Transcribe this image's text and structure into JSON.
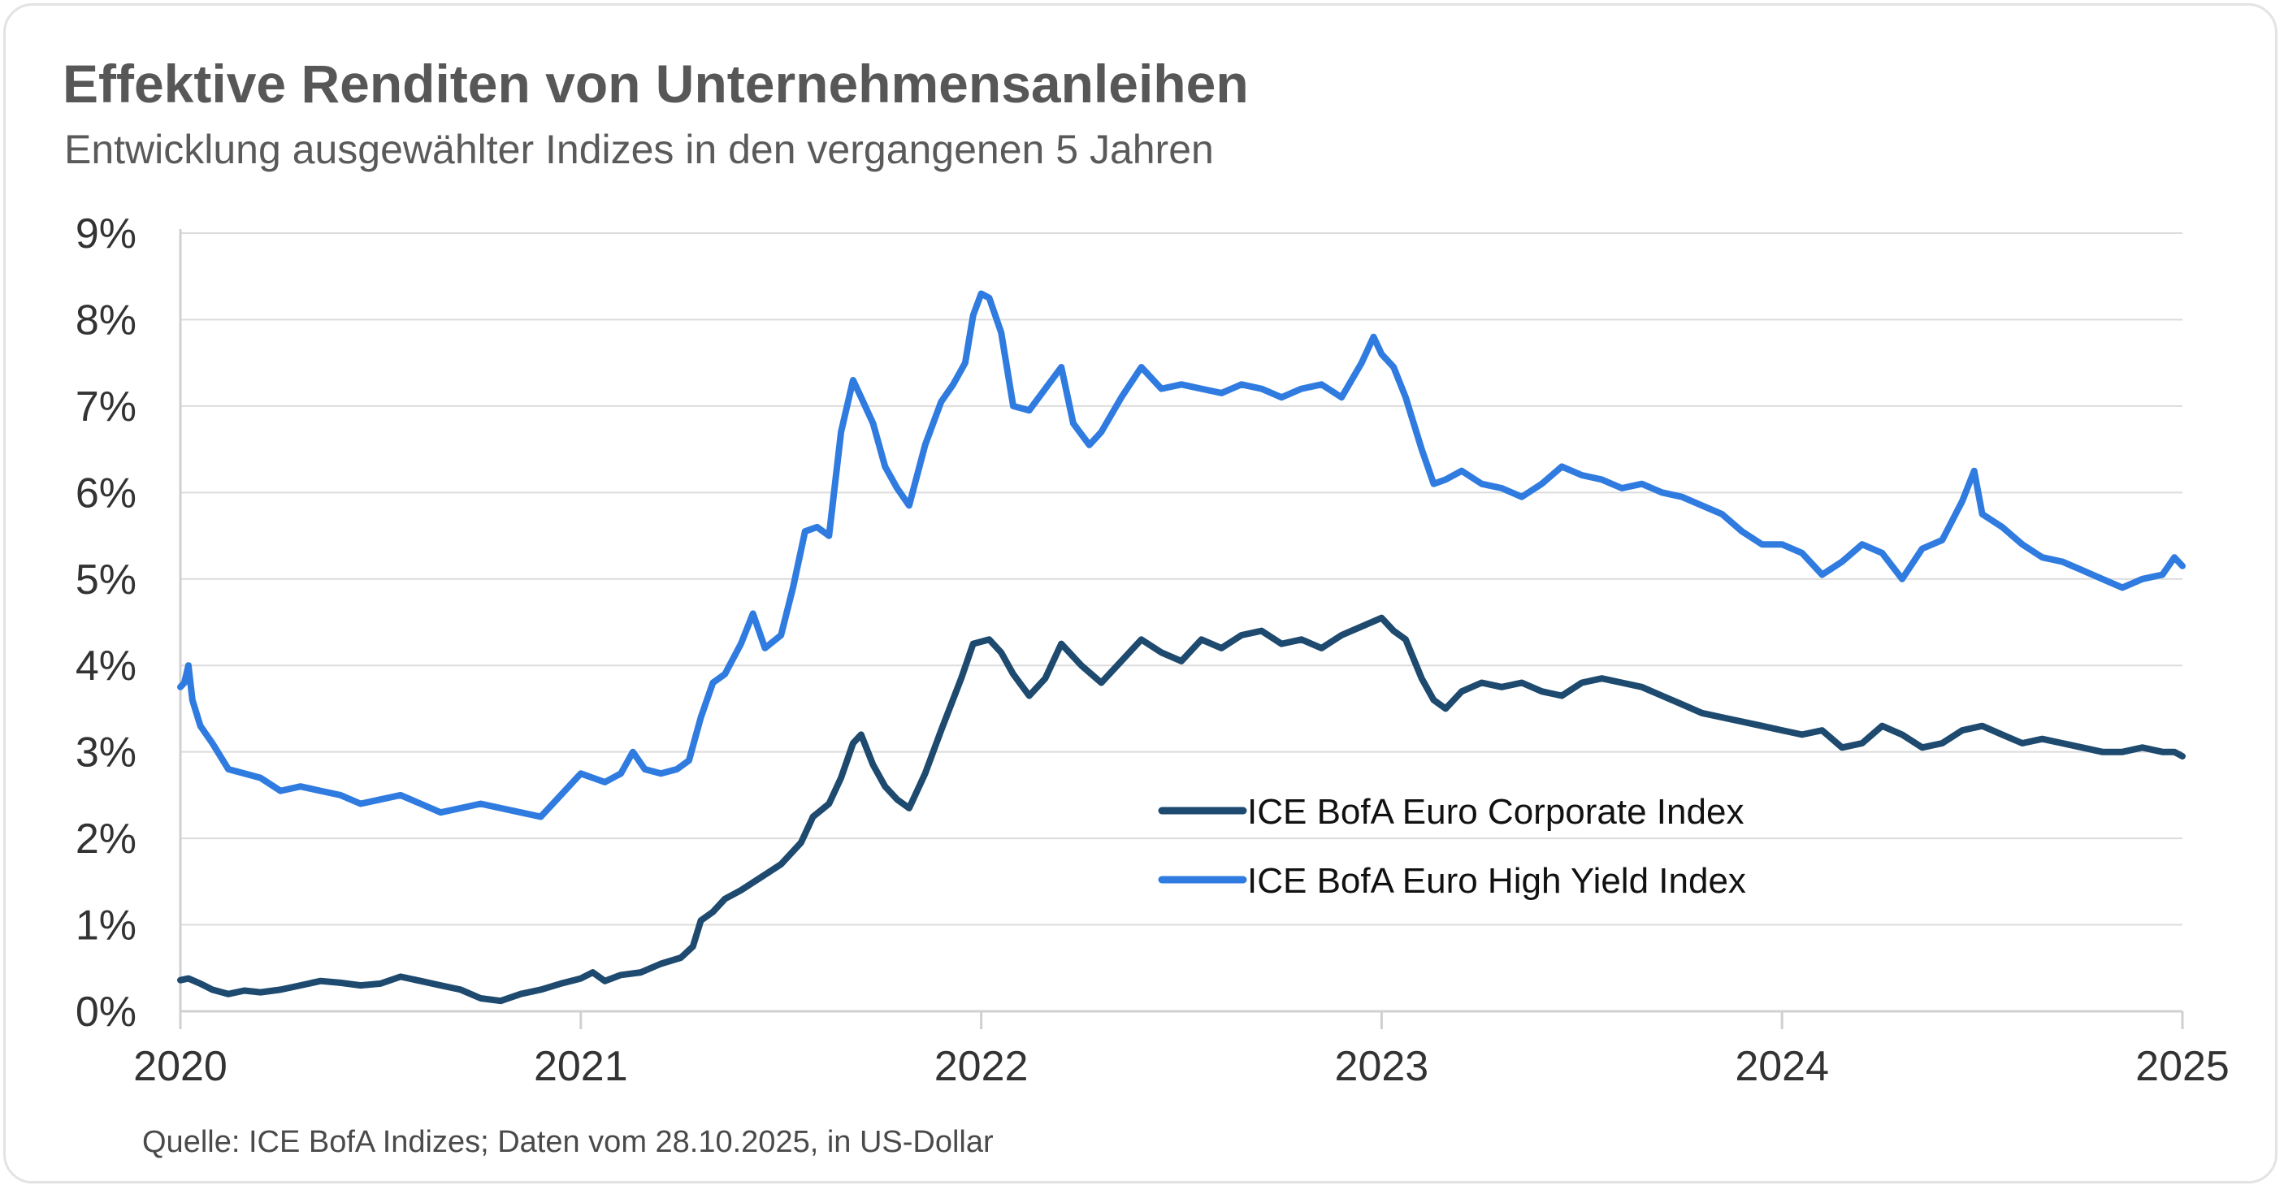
{
  "chart_data": {
    "type": "line",
    "title": "Effektive Renditen von Unternehmensanleihen",
    "subtitle": "Entwicklung ausgewählter Indizes in den vergangenen 5 Jahren",
    "source": "Quelle: ICE BofA Indizes; Daten vom 28.10.2025, in US-Dollar",
    "xlabel": "",
    "ylabel": "",
    "xlim": [
      2020,
      2025
    ],
    "ylim": [
      0,
      9
    ],
    "x_ticks": [
      2020,
      2021,
      2022,
      2023,
      2024,
      2025
    ],
    "x_tick_labels": [
      "2020",
      "2021",
      "2022",
      "2023",
      "2024",
      "2025"
    ],
    "y_ticks": [
      0,
      1,
      2,
      3,
      4,
      5,
      6,
      7,
      8,
      9
    ],
    "y_tick_labels": [
      "0%",
      "1%",
      "2%",
      "3%",
      "4%",
      "5%",
      "6%",
      "7%",
      "8%",
      "9%"
    ],
    "grid": true,
    "legend_position": "center-right",
    "series": [
      {
        "name": "ICE BofA Euro Corporate Index",
        "color": "#1d4a6e",
        "x": [
          2020.0,
          2020.02,
          2020.05,
          2020.08,
          2020.12,
          2020.16,
          2020.2,
          2020.25,
          2020.3,
          2020.35,
          2020.4,
          2020.45,
          2020.5,
          2020.55,
          2020.6,
          2020.65,
          2020.7,
          2020.75,
          2020.8,
          2020.85,
          2020.9,
          2020.95,
          2021.0,
          2021.03,
          2021.06,
          2021.1,
          2021.15,
          2021.2,
          2021.25,
          2021.28,
          2021.3,
          2021.33,
          2021.36,
          2021.4,
          2021.45,
          2021.5,
          2021.55,
          2021.58,
          2021.62,
          2021.65,
          2021.68,
          2021.7,
          2021.73,
          2021.76,
          2021.79,
          2021.82,
          2021.86,
          2021.9,
          2021.95,
          2021.98,
          2022.02,
          2022.05,
          2022.08,
          2022.12,
          2022.16,
          2022.2,
          2022.25,
          2022.3,
          2022.35,
          2022.4,
          2022.45,
          2022.5,
          2022.55,
          2022.6,
          2022.65,
          2022.7,
          2022.75,
          2022.8,
          2022.85,
          2022.9,
          2022.95,
          2023.0,
          2023.03,
          2023.06,
          2023.1,
          2023.13,
          2023.16,
          2023.2,
          2023.25,
          2023.3,
          2023.35,
          2023.4,
          2023.45,
          2023.5,
          2023.55,
          2023.6,
          2023.65,
          2023.7,
          2023.75,
          2023.8,
          2023.85,
          2023.9,
          2023.95,
          2024.0,
          2024.05,
          2024.1,
          2024.15,
          2024.2,
          2024.25,
          2024.3,
          2024.35,
          2024.4,
          2024.45,
          2024.5,
          2024.55,
          2024.6,
          2024.65,
          2024.7,
          2024.75,
          2024.8,
          2024.85,
          2024.9,
          2024.95,
          2024.98,
          2025.0
        ],
        "values": [
          0.36,
          0.38,
          0.32,
          0.25,
          0.2,
          0.24,
          0.22,
          0.25,
          0.3,
          0.35,
          0.33,
          0.3,
          0.32,
          0.4,
          0.35,
          0.3,
          0.25,
          0.15,
          0.12,
          0.2,
          0.25,
          0.32,
          0.38,
          0.45,
          0.35,
          0.42,
          0.45,
          0.55,
          0.62,
          0.75,
          1.05,
          1.15,
          1.3,
          1.4,
          1.55,
          1.7,
          1.95,
          2.25,
          2.4,
          2.7,
          3.1,
          3.2,
          2.85,
          2.6,
          2.45,
          2.35,
          2.75,
          3.25,
          3.85,
          4.25,
          4.3,
          4.15,
          3.9,
          3.65,
          3.85,
          4.25,
          4.0,
          3.8,
          4.05,
          4.3,
          4.15,
          4.05,
          4.3,
          4.2,
          4.35,
          4.4,
          4.25,
          4.3,
          4.2,
          4.35,
          4.45,
          4.55,
          4.4,
          4.3,
          3.85,
          3.6,
          3.5,
          3.7,
          3.8,
          3.75,
          3.8,
          3.7,
          3.65,
          3.8,
          3.85,
          3.8,
          3.75,
          3.65,
          3.55,
          3.45,
          3.4,
          3.35,
          3.3,
          3.25,
          3.2,
          3.25,
          3.05,
          3.1,
          3.3,
          3.2,
          3.05,
          3.1,
          3.25,
          3.3,
          3.2,
          3.1,
          3.15,
          3.1,
          3.05,
          3.0,
          3.0,
          3.05,
          3.0,
          3.0,
          2.95
        ]
      },
      {
        "name": "ICE BofA Euro High Yield Index",
        "color": "#2f7be0",
        "x": [
          2020.0,
          2020.01,
          2020.02,
          2020.03,
          2020.05,
          2020.08,
          2020.12,
          2020.16,
          2020.2,
          2020.25,
          2020.3,
          2020.35,
          2020.4,
          2020.45,
          2020.5,
          2020.55,
          2020.6,
          2020.65,
          2020.7,
          2020.75,
          2020.8,
          2020.85,
          2020.9,
          2020.95,
          2021.0,
          2021.03,
          2021.06,
          2021.1,
          2021.13,
          2021.16,
          2021.2,
          2021.24,
          2021.27,
          2021.3,
          2021.33,
          2021.36,
          2021.4,
          2021.43,
          2021.46,
          2021.5,
          2021.53,
          2021.56,
          2021.59,
          2021.62,
          2021.65,
          2021.68,
          2021.7,
          2021.73,
          2021.76,
          2021.79,
          2021.82,
          2021.86,
          2021.9,
          2021.93,
          2021.96,
          2021.98,
          2022.0,
          2022.02,
          2022.05,
          2022.08,
          2022.12,
          2022.16,
          2022.2,
          2022.23,
          2022.27,
          2022.3,
          2022.35,
          2022.4,
          2022.45,
          2022.5,
          2022.55,
          2022.6,
          2022.65,
          2022.7,
          2022.75,
          2022.8,
          2022.85,
          2022.9,
          2022.95,
          2022.98,
          2023.0,
          2023.03,
          2023.06,
          2023.1,
          2023.13,
          2023.16,
          2023.2,
          2023.25,
          2023.3,
          2023.35,
          2023.4,
          2023.45,
          2023.5,
          2023.55,
          2023.6,
          2023.65,
          2023.7,
          2023.75,
          2023.8,
          2023.85,
          2023.9,
          2023.95,
          2024.0,
          2024.05,
          2024.1,
          2024.15,
          2024.2,
          2024.25,
          2024.3,
          2024.35,
          2024.4,
          2024.45,
          2024.48,
          2024.5,
          2024.55,
          2024.6,
          2024.65,
          2024.7,
          2024.75,
          2024.8,
          2024.85,
          2024.9,
          2024.95,
          2024.98,
          2025.0
        ],
        "values": [
          3.75,
          3.8,
          4.0,
          3.6,
          3.3,
          3.1,
          2.8,
          2.75,
          2.7,
          2.55,
          2.6,
          2.55,
          2.5,
          2.4,
          2.45,
          2.5,
          2.4,
          2.3,
          2.35,
          2.4,
          2.35,
          2.3,
          2.25,
          2.5,
          2.75,
          2.7,
          2.65,
          2.75,
          3.0,
          2.8,
          2.75,
          2.8,
          2.9,
          3.4,
          3.8,
          3.9,
          4.25,
          4.6,
          4.2,
          4.35,
          4.9,
          5.55,
          5.6,
          5.5,
          6.7,
          7.3,
          7.1,
          6.8,
          6.3,
          6.05,
          5.85,
          6.55,
          7.05,
          7.25,
          7.5,
          8.05,
          8.3,
          8.25,
          7.85,
          7.0,
          6.95,
          7.2,
          7.45,
          6.8,
          6.55,
          6.7,
          7.1,
          7.45,
          7.2,
          7.25,
          7.2,
          7.15,
          7.25,
          7.2,
          7.1,
          7.2,
          7.25,
          7.1,
          7.5,
          7.8,
          7.6,
          7.45,
          7.1,
          6.5,
          6.1,
          6.15,
          6.25,
          6.1,
          6.05,
          5.95,
          6.1,
          6.3,
          6.2,
          6.15,
          6.05,
          6.1,
          6.0,
          5.95,
          5.85,
          5.75,
          5.55,
          5.4,
          5.4,
          5.3,
          5.05,
          5.2,
          5.4,
          5.3,
          5.0,
          5.35,
          5.45,
          5.9,
          6.25,
          5.75,
          5.6,
          5.4,
          5.25,
          5.2,
          5.1,
          5.0,
          4.9,
          5.0,
          5.05,
          5.25,
          5.15
        ]
      }
    ]
  }
}
